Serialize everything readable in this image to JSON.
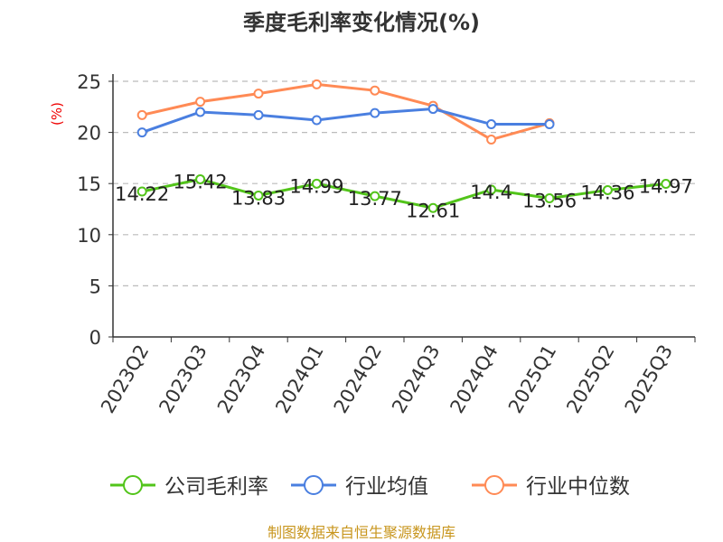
{
  "chart_data": {
    "type": "line",
    "title": "季度毛利率变化情况(%)",
    "ylabel": "(%)",
    "ylim": [
      0,
      25
    ],
    "yticks": [
      "0",
      "5",
      "10",
      "15",
      "20",
      "25"
    ],
    "categories": [
      "2023Q2",
      "2023Q3",
      "2023Q4",
      "2024Q1",
      "2024Q2",
      "2024Q3",
      "2024Q4",
      "2025Q1",
      "2025Q2",
      "2025Q3"
    ],
    "series": [
      {
        "name": "公司毛利率",
        "color": "#52c41a",
        "values": [
          14.22,
          15.42,
          13.83,
          14.99,
          13.77,
          12.61,
          14.4,
          13.56,
          14.36,
          14.97
        ],
        "labels": [
          "14.22",
          "15.42",
          "13.83",
          "14.99",
          "13.77",
          "12.61",
          "14.4",
          "13.56",
          "14.36",
          "14.97"
        ]
      },
      {
        "name": "行业均值",
        "color": "#4a7fe0",
        "values": [
          20.0,
          22.0,
          21.7,
          21.2,
          21.9,
          22.3,
          20.8,
          20.8,
          null,
          null
        ]
      },
      {
        "name": "行业中位数",
        "color": "#ff8a55",
        "values": [
          21.7,
          23.0,
          23.8,
          24.7,
          24.1,
          22.6,
          19.3,
          20.9,
          null,
          null
        ]
      }
    ],
    "legend_position": "bottom",
    "grid": true
  },
  "footer": "制图数据来自恒生聚源数据库"
}
